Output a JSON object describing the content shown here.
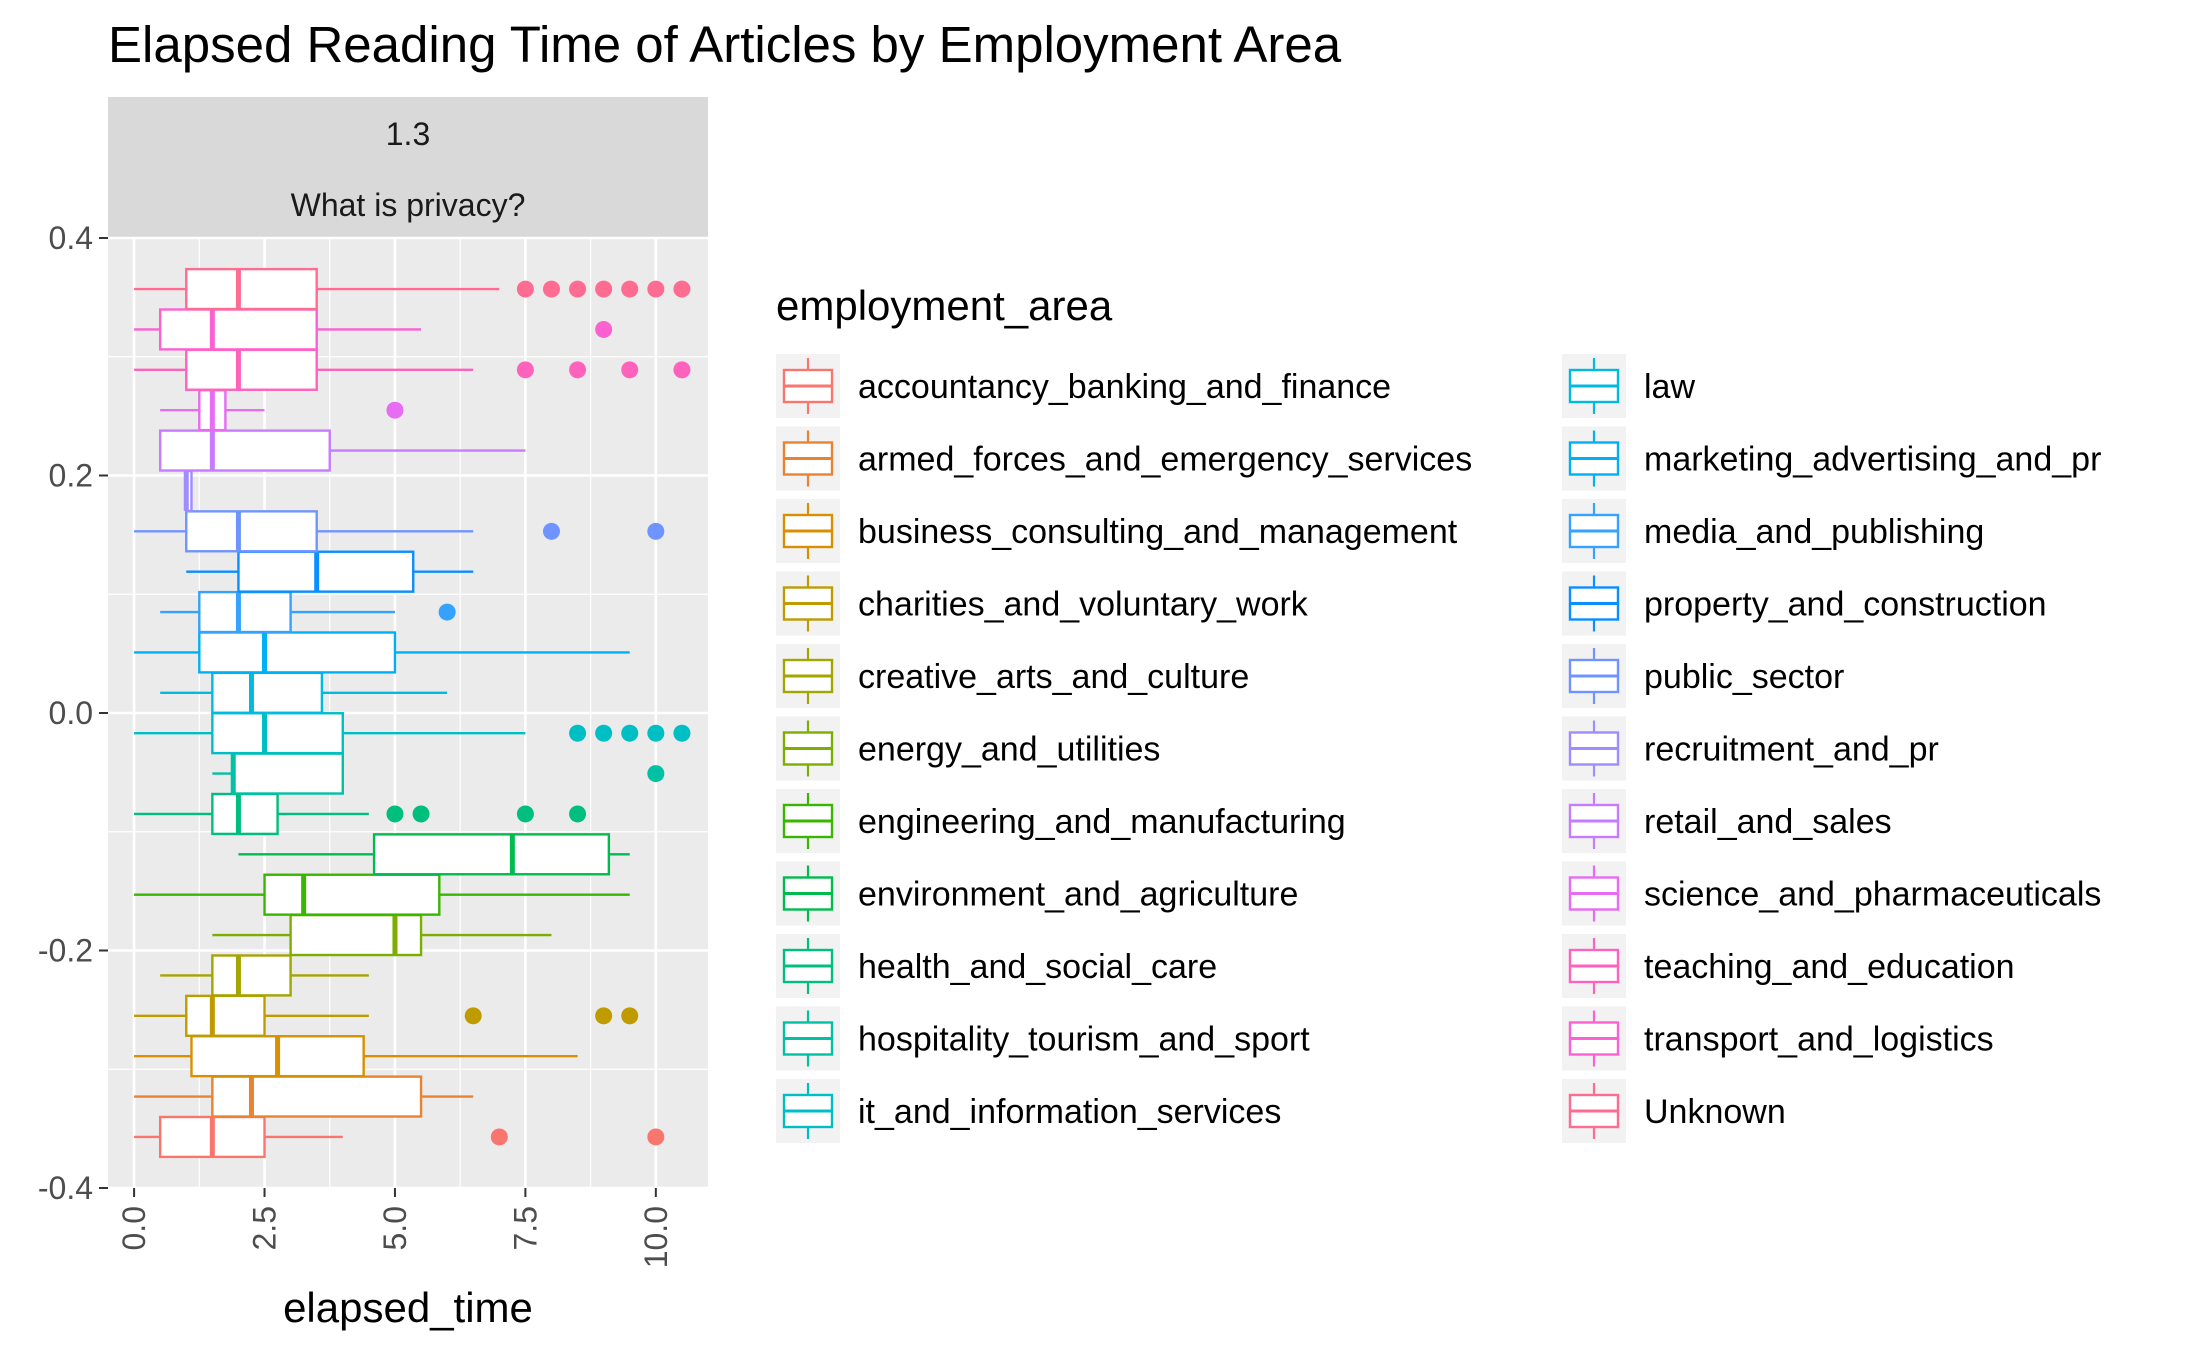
{
  "chart_data": {
    "type": "boxplot",
    "title": "Elapsed Reading Time of Articles by Employment Area",
    "facet": {
      "row1": "1.3",
      "row2": "What is privacy?"
    },
    "xlabel": "elapsed_time",
    "ylabel": "",
    "xlim": [
      -0.5,
      11.0
    ],
    "ylim": [
      -0.4,
      0.4
    ],
    "x_ticks": [
      "0.0",
      "2.5",
      "5.0",
      "7.5",
      "10.0"
    ],
    "y_ticks": [
      "-0.4",
      "-0.2",
      "0.0",
      "0.2",
      "0.4"
    ],
    "grid": true,
    "orientation": "horizontal",
    "legend": {
      "title": "employment_area",
      "position": "right",
      "columns": 2
    },
    "series": [
      {
        "name": "accountancy_banking_and_finance",
        "color": "#F8766D",
        "y": -0.357,
        "lw": 0.0,
        "q1": 0.5,
        "median": 1.5,
        "q3": 2.5,
        "uw": 4.0,
        "outliers": [
          7.0,
          10.0
        ]
      },
      {
        "name": "armed_forces_and_emergency_services",
        "color": "#EA8331",
        "y": -0.323,
        "lw": 0.0,
        "q1": 1.5,
        "median": 2.25,
        "q3": 5.5,
        "uw": 6.5,
        "outliers": []
      },
      {
        "name": "business_consulting_and_management",
        "color": "#D89000",
        "y": -0.289,
        "lw": 0.0,
        "q1": 1.1,
        "median": 2.75,
        "q3": 4.4,
        "uw": 8.5,
        "outliers": []
      },
      {
        "name": "charities_and_voluntary_work",
        "color": "#C09B00",
        "y": -0.255,
        "lw": 0.0,
        "q1": 1.0,
        "median": 1.5,
        "q3": 2.5,
        "uw": 4.5,
        "outliers": [
          6.5,
          9.0,
          9.5
        ]
      },
      {
        "name": "creative_arts_and_culture",
        "color": "#A3A500",
        "y": -0.221,
        "lw": 0.5,
        "q1": 1.5,
        "median": 2.0,
        "q3": 3.0,
        "uw": 4.5,
        "outliers": []
      },
      {
        "name": "energy_and_utilities",
        "color": "#7CAE00",
        "y": -0.187,
        "lw": 1.5,
        "q1": 3.0,
        "median": 5.0,
        "q3": 5.5,
        "uw": 8.0,
        "outliers": []
      },
      {
        "name": "engineering_and_manufacturing",
        "color": "#39B600",
        "y": -0.153,
        "lw": 0.0,
        "q1": 2.5,
        "median": 3.25,
        "q3": 5.85,
        "uw": 9.5,
        "outliers": []
      },
      {
        "name": "environment_and_agriculture",
        "color": "#00BB4E",
        "y": -0.119,
        "lw": 2.0,
        "q1": 4.6,
        "median": 7.25,
        "q3": 9.1,
        "uw": 9.5,
        "outliers": []
      },
      {
        "name": "health_and_social_care",
        "color": "#00BF7D",
        "y": -0.085,
        "lw": 0.0,
        "q1": 1.5,
        "median": 2.0,
        "q3": 2.75,
        "uw": 4.5,
        "outliers": [
          5.0,
          5.5,
          7.5,
          8.5
        ]
      },
      {
        "name": "hospitality_tourism_and_sport",
        "color": "#00C1A3",
        "y": -0.051,
        "lw": 1.5,
        "q1": 1.9,
        "median": 1.9,
        "q3": 4.0,
        "uw": 4.0,
        "outliers": [
          10.0
        ]
      },
      {
        "name": "it_and_information_services",
        "color": "#00BFC4",
        "y": -0.017,
        "lw": 0.0,
        "q1": 1.5,
        "median": 2.5,
        "q3": 4.0,
        "uw": 7.5,
        "outliers": [
          8.5,
          9.0,
          9.5,
          10.0,
          10.5
        ]
      },
      {
        "name": "law",
        "color": "#00BAE0",
        "y": 0.017,
        "lw": 0.5,
        "q1": 1.5,
        "median": 2.25,
        "q3": 3.6,
        "uw": 6.0,
        "outliers": []
      },
      {
        "name": "marketing_advertising_and_pr",
        "color": "#00B0F6",
        "y": 0.051,
        "lw": 0.0,
        "q1": 1.25,
        "median": 2.5,
        "q3": 5.0,
        "uw": 9.5,
        "outliers": []
      },
      {
        "name": "media_and_publishing",
        "color": "#35A2FF",
        "y": 0.085,
        "lw": 0.5,
        "q1": 1.25,
        "median": 2.0,
        "q3": 3.0,
        "uw": 5.0,
        "outliers": [
          6.0
        ]
      },
      {
        "name": "property_and_construction",
        "color": "#0A8FFF",
        "y": 0.119,
        "lw": 1.0,
        "q1": 2.0,
        "median": 3.5,
        "q3": 5.35,
        "uw": 6.5,
        "outliers": []
      },
      {
        "name": "public_sector",
        "color": "#7094FF",
        "y": 0.153,
        "lw": 0.0,
        "q1": 1.0,
        "median": 2.0,
        "q3": 3.5,
        "uw": 6.5,
        "outliers": [
          8.0,
          10.0
        ]
      },
      {
        "name": "recruitment_and_pr",
        "color": "#9F8CFF",
        "y": 0.187,
        "lw": 1.0,
        "q1": 1.0,
        "median": 1.0,
        "q3": 1.1,
        "uw": 1.1,
        "outliers": []
      },
      {
        "name": "retail_and_sales",
        "color": "#C77CFF",
        "y": 0.221,
        "lw": 0.5,
        "q1": 0.5,
        "median": 1.5,
        "q3": 3.75,
        "uw": 7.5,
        "outliers": []
      },
      {
        "name": "science_and_pharmaceuticals",
        "color": "#E76BF3",
        "y": 0.255,
        "lw": 0.5,
        "q1": 1.25,
        "median": 1.5,
        "q3": 1.75,
        "uw": 2.5,
        "outliers": [
          5.0
        ]
      },
      {
        "name": "teaching_and_education",
        "color": "#FF62BC",
        "y": 0.289,
        "lw": 0.0,
        "q1": 1.0,
        "median": 2.0,
        "q3": 3.5,
        "uw": 6.5,
        "outliers": [
          7.5,
          8.5,
          9.5,
          10.5
        ]
      },
      {
        "name": "transport_and_logistics",
        "color": "#FD61D1",
        "y": 0.323,
        "lw": 0.0,
        "q1": 0.5,
        "median": 1.5,
        "q3": 3.5,
        "uw": 5.5,
        "outliers": [
          9.0
        ]
      },
      {
        "name": "Unknown",
        "color": "#FF6C91",
        "y": 0.357,
        "lw": 0.0,
        "q1": 1.0,
        "median": 2.0,
        "q3": 3.5,
        "uw": 7.0,
        "outliers": [
          7.5,
          8.0,
          8.5,
          9.0,
          9.5,
          10.0,
          10.5
        ]
      }
    ]
  }
}
